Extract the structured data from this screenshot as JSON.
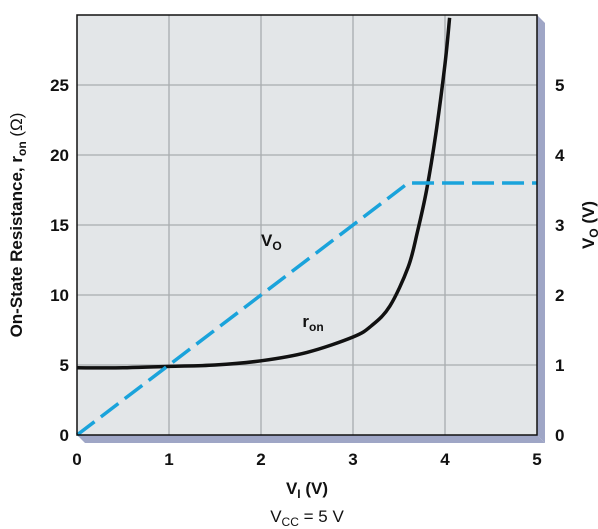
{
  "chart_data": {
    "type": "line",
    "x_axis": {
      "label_main": "V",
      "label_sub": "I",
      "label_unit": " (V)",
      "range": [
        0,
        5
      ],
      "ticks": [
        "0",
        "1",
        "2",
        "3",
        "4",
        "5"
      ]
    },
    "y_left_axis": {
      "label_prefix": "On-State Resistance, r",
      "label_sub": "on",
      "label_unit": " (Ω)",
      "range": [
        0,
        30
      ],
      "ticks": [
        "0",
        "5",
        "10",
        "15",
        "20",
        "25"
      ]
    },
    "y_right_axis": {
      "label_main": "V",
      "label_sub": "O",
      "label_unit": " (V)",
      "range": [
        0,
        6
      ],
      "ticks": [
        "0",
        "1",
        "2",
        "3",
        "4",
        "5"
      ]
    },
    "grid": true,
    "series": [
      {
        "name": "ron",
        "label_main": "r",
        "label_sub": "on",
        "axis": "left",
        "color": "#111111",
        "style": "solid",
        "x": [
          0,
          0.5,
          1.0,
          1.5,
          2.0,
          2.5,
          3.0,
          3.2,
          3.4,
          3.6,
          3.7,
          3.8,
          3.9,
          4.0,
          4.05
        ],
        "y": [
          4.8,
          4.8,
          4.9,
          5.0,
          5.3,
          5.9,
          7.0,
          7.8,
          9.2,
          12.0,
          14.5,
          17.5,
          21.5,
          26.5,
          29.8
        ]
      },
      {
        "name": "VO",
        "label_main": "V",
        "label_sub": "O",
        "axis": "right",
        "color": "#1aa3db",
        "style": "dashed",
        "x": [
          0,
          3.6,
          5.0
        ],
        "y": [
          0,
          3.6,
          3.6
        ]
      }
    ],
    "annotation": {
      "main": "V",
      "sub": "CC",
      "rest": " = 5 V"
    },
    "colors": {
      "plot_background": "#e3e6e8",
      "grid": "#a8acaf",
      "frame": "#111111",
      "shadow": "#9fa6c6"
    }
  }
}
